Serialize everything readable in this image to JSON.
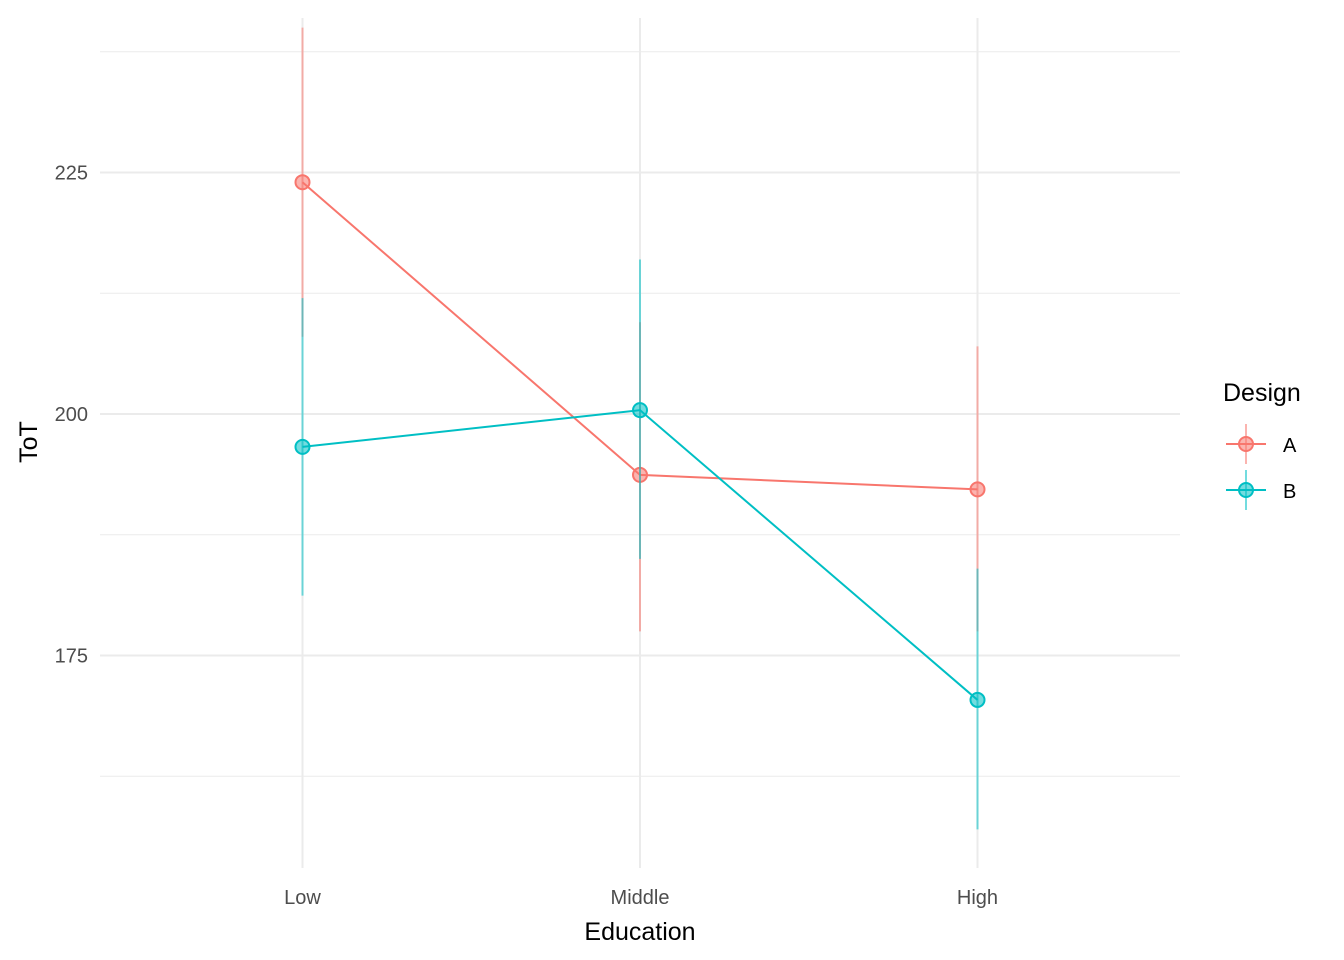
{
  "chart_data": {
    "type": "line",
    "xlabel": "Education",
    "ylabel": "ToT",
    "categories": [
      "Low",
      "Middle",
      "High"
    ],
    "ylim": [
      153,
      241
    ],
    "y_ticks": [
      175,
      200,
      225
    ],
    "y_minor_ticks": [
      162.5,
      187.5,
      212.5,
      237.5
    ],
    "grid": true,
    "legend": {
      "title": "Design",
      "placement": "right"
    },
    "series": [
      {
        "name": "A",
        "color": "#F8766D",
        "values": [
          224,
          193.7,
          192.2
        ],
        "lower": [
          208,
          177.5,
          177.5
        ],
        "upper": [
          240,
          209.5,
          207
        ]
      },
      {
        "name": "B",
        "color": "#00BFC4",
        "values": [
          196.6,
          200.4,
          170.4
        ],
        "lower": [
          181.2,
          185,
          157
        ],
        "upper": [
          212,
          216,
          184
        ]
      }
    ]
  }
}
